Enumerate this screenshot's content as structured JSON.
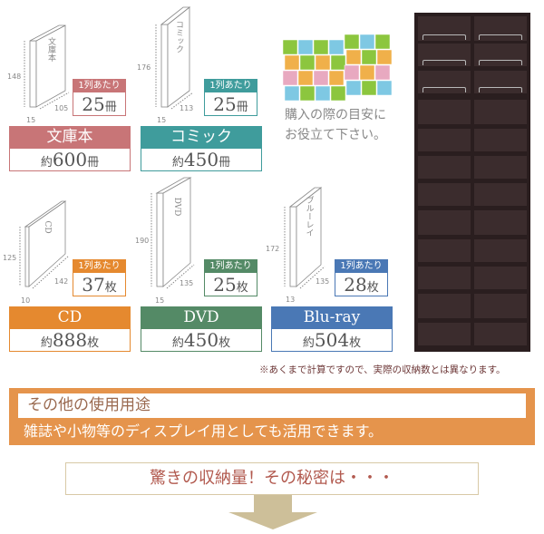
{
  "colors": {
    "bunko": "#c87577",
    "comic": "#3f9c9c",
    "cd": "#e5892f",
    "dvd": "#548a66",
    "bluray": "#4a78b5",
    "banner": "#e5944c",
    "arrow": "#cdbf99"
  },
  "items": [
    {
      "key": "bunko",
      "name": "文庫本",
      "spine": "文庫本",
      "height": "148",
      "width": "105",
      "thickness": "15",
      "per_row_label": "1列あたり",
      "per_row": "25",
      "unit": "冊",
      "total_prefix": "約",
      "total": "600"
    },
    {
      "key": "comic",
      "name": "コミック",
      "spine": "コミック",
      "height": "176",
      "width": "113",
      "thickness": "15",
      "per_row_label": "1列あたり",
      "per_row": "25",
      "unit": "冊",
      "total_prefix": "約",
      "total": "450"
    },
    {
      "key": "cd",
      "name": "CD",
      "spine": "CD",
      "height": "125",
      "width": "142",
      "thickness": "10",
      "per_row_label": "1列あたり",
      "per_row": "37",
      "unit": "枚",
      "total_prefix": "約",
      "total": "888"
    },
    {
      "key": "dvd",
      "name": "DVD",
      "spine": "DVD",
      "height": "190",
      "width": "135",
      "thickness": "15",
      "per_row_label": "1列あたり",
      "per_row": "25",
      "unit": "枚",
      "total_prefix": "約",
      "total": "450"
    },
    {
      "key": "bluray",
      "name": "Blu-ray",
      "spine": "ブルーレイ",
      "height": "172",
      "width": "135",
      "thickness": "13",
      "per_row_label": "1列あたり",
      "per_row": "28",
      "unit": "枚",
      "total_prefix": "約",
      "total": "504"
    }
  ],
  "pile_caption": [
    "購入の際の目安に",
    "お役立て下さい。"
  ],
  "note": "※あくまで計算ですので、実際の収納数とは異なります。",
  "other_use": {
    "title": "その他の使用用途",
    "text": "雑誌や小物等のディスプレイ用としても活用できます。"
  },
  "cta": "驚きの収納量！その秘密は・・・",
  "arrow_icon": "down-arrow-icon"
}
